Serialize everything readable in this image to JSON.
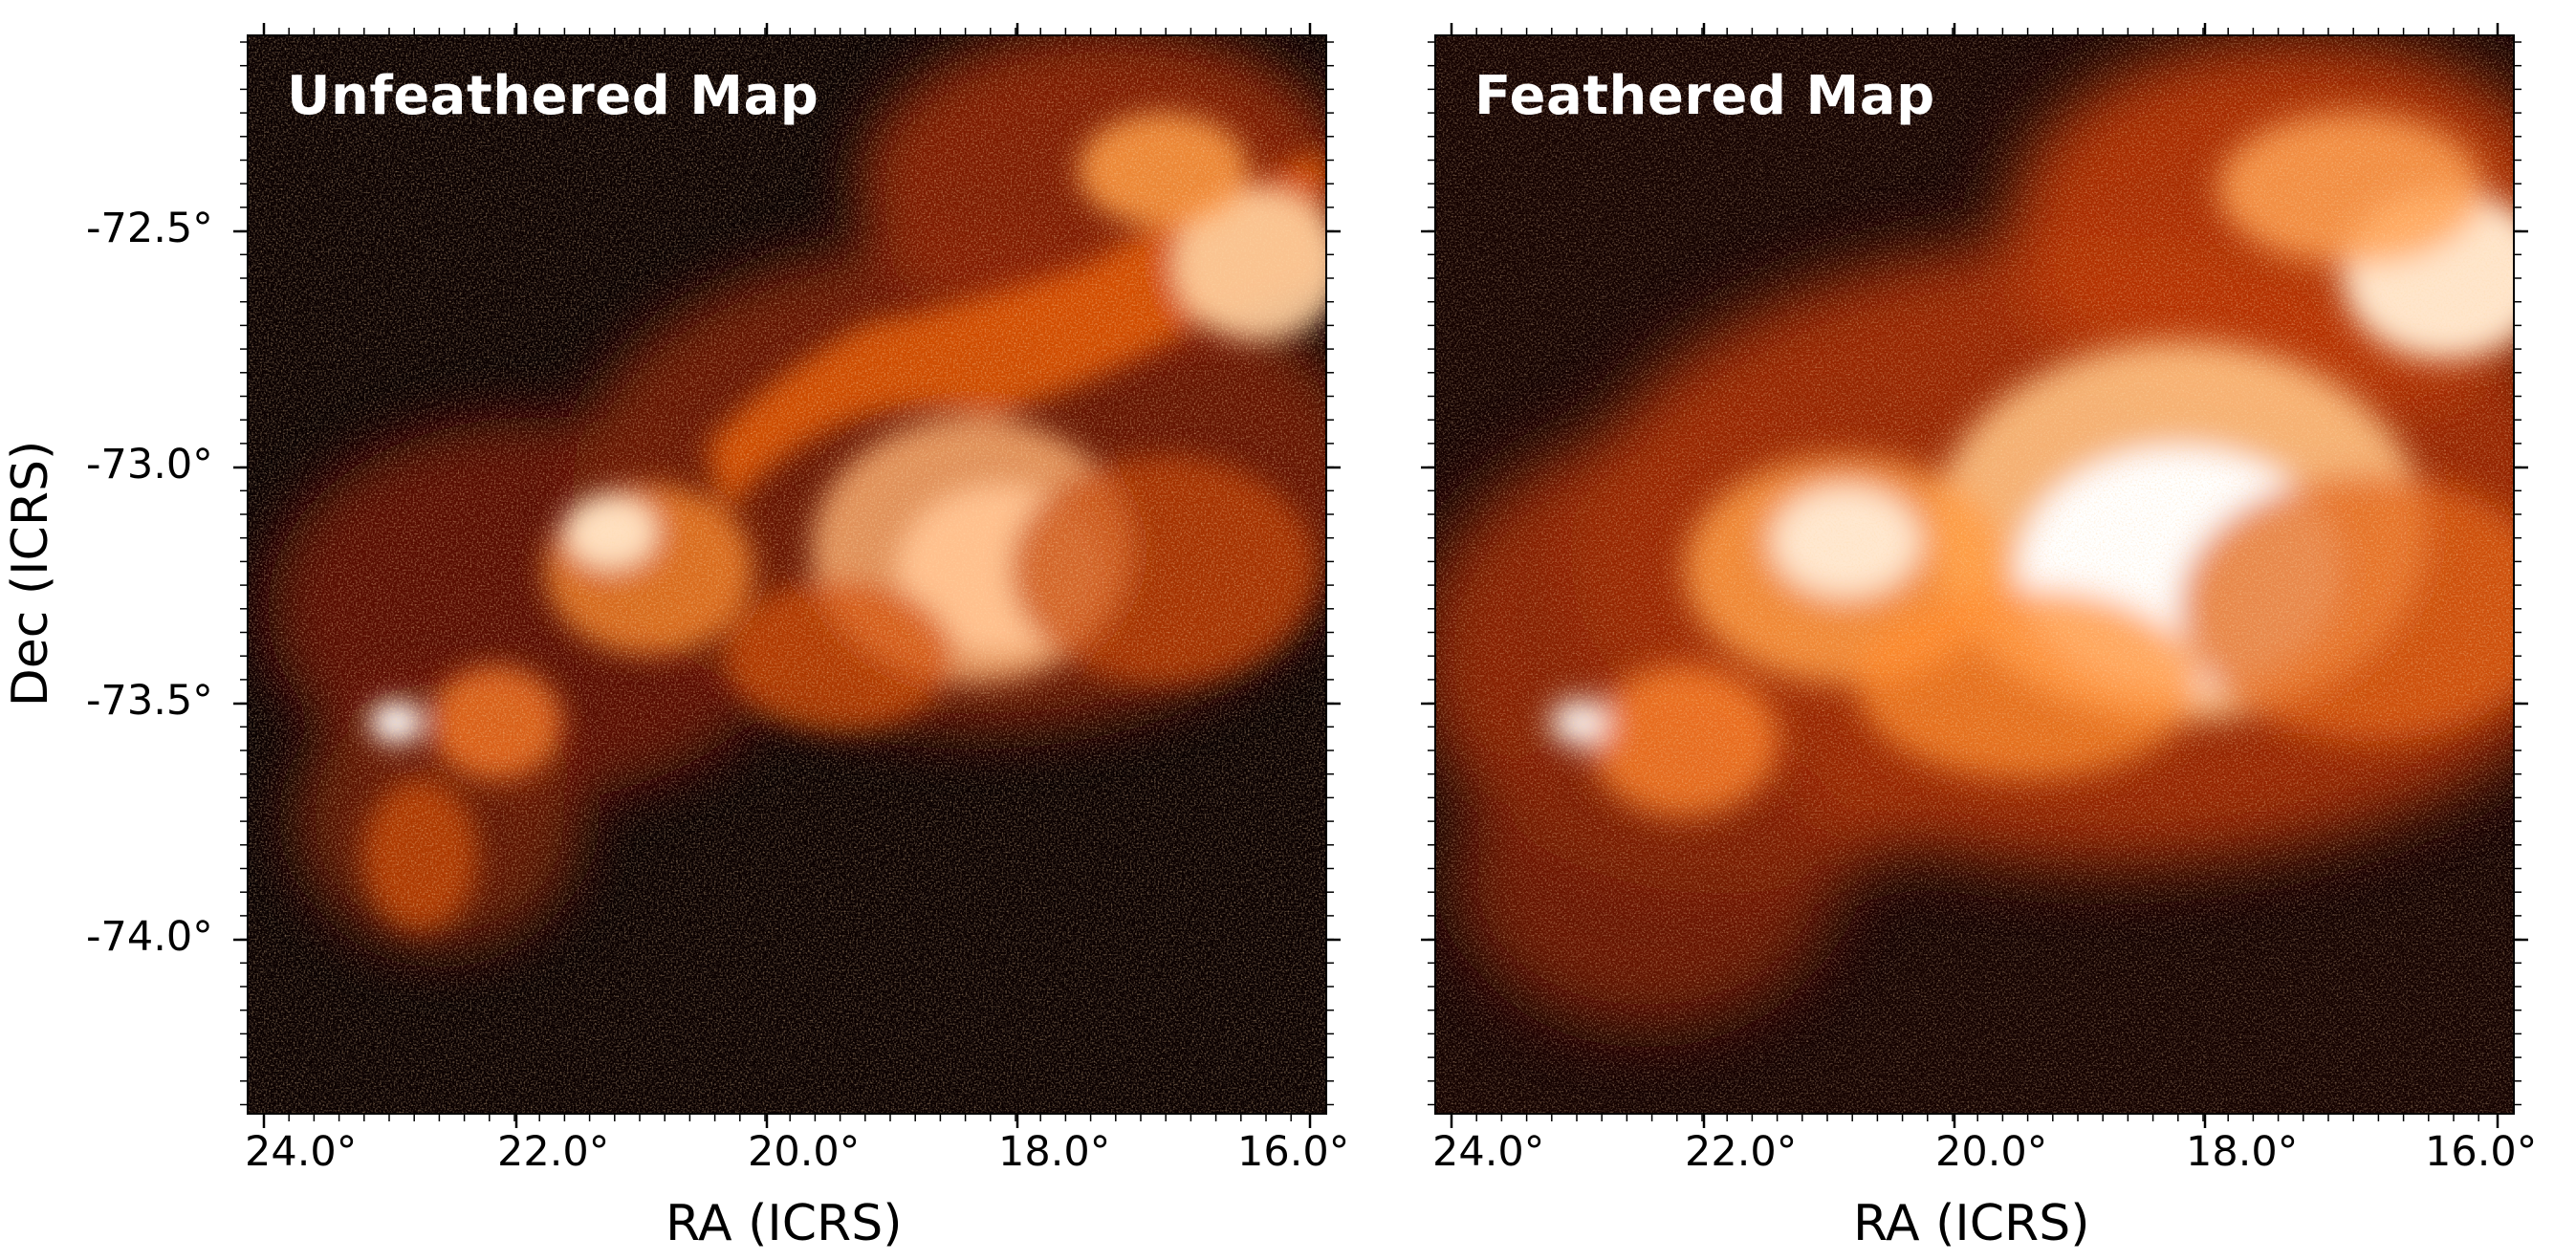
{
  "panels": [
    {
      "title": "Unfeathered Map"
    },
    {
      "title": "Feathered Map"
    }
  ],
  "axes": {
    "xlabel": "RA (ICRS)",
    "ylabel": "Dec (ICRS)",
    "xticks": [
      "24.0°",
      "22.0°",
      "20.0°",
      "18.0°",
      "16.0°"
    ],
    "yticks": [
      "-72.5°",
      "-73.0°",
      "-73.5°",
      "-74.0°"
    ]
  },
  "colors": {
    "colormap": [
      "#000000",
      "#3a0500",
      "#8a1e00",
      "#d04a00",
      "#ff8a2a",
      "#ffcf9a",
      "#ffffff"
    ]
  }
}
